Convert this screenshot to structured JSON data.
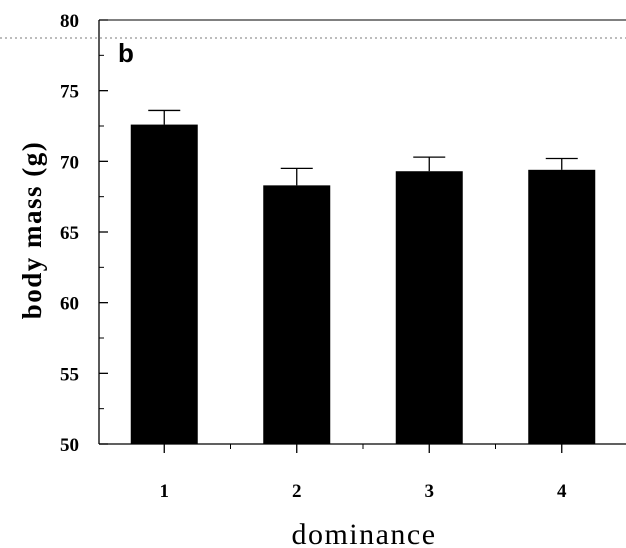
{
  "chart_data": {
    "type": "bar",
    "panel_label": "b",
    "xlabel": "dominance",
    "ylabel": "body  mass  (g)",
    "categories": [
      "1",
      "2",
      "3",
      "4"
    ],
    "values": [
      72.6,
      68.3,
      69.3,
      69.4
    ],
    "error": [
      1.0,
      1.2,
      1.0,
      0.8
    ],
    "ylim": [
      50,
      80
    ],
    "yticks": [
      50,
      55,
      60,
      65,
      70,
      75,
      80
    ],
    "bar_color": "#000000",
    "grid": false
  }
}
